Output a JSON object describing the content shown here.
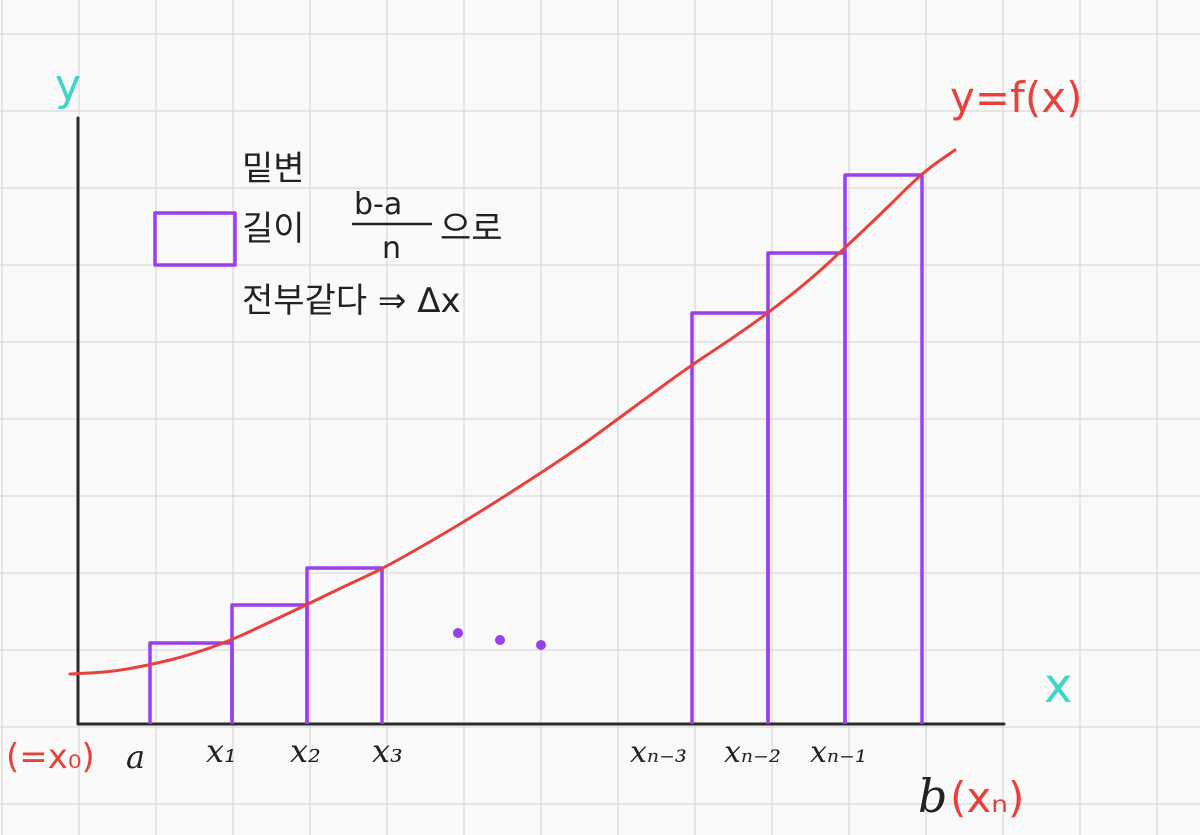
{
  "axes": {
    "y_label": "y",
    "x_label": "x"
  },
  "function_label": "y=f(x)",
  "legend": {
    "line1": "밑변",
    "line2": "길이",
    "fraction_numerator": "b-a",
    "fraction_denominator": "n",
    "suffix": "으로",
    "line3": "전부같다 ⇒ Δx"
  },
  "x_labels": {
    "start_note": "(=x₀)",
    "a": "a",
    "x1": "x₁",
    "x2": "x₂",
    "x3": "x₃",
    "xn3": "xₙ₋₃",
    "xn2": "xₙ₋₂",
    "xn1": "xₙ₋₁",
    "b": "b",
    "xn_note": "(xₙ)"
  },
  "ellipsis": "• • •",
  "colors": {
    "bars": "#9b3df0",
    "curve": "#e8413b",
    "axis_labels": "#3ed6c6",
    "axes": "#2a2a2a"
  }
}
